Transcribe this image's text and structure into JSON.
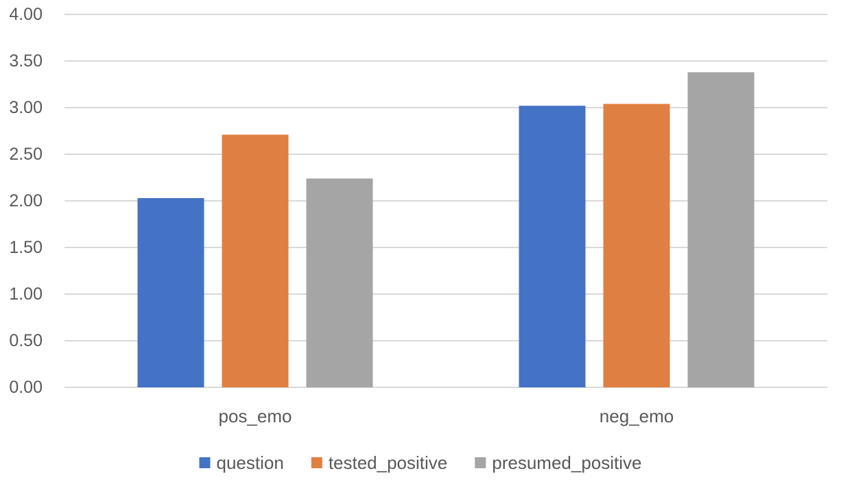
{
  "chart_data": {
    "type": "bar",
    "categories": [
      "pos_emo",
      "neg_emo"
    ],
    "series": [
      {
        "name": "question",
        "values": [
          2.03,
          3.02
        ],
        "color": "#4472c4"
      },
      {
        "name": "tested_positive",
        "values": [
          2.71,
          3.04
        ],
        "color": "#e07f42"
      },
      {
        "name": "presumed_positive",
        "values": [
          2.24,
          3.38
        ],
        "color": "#a5a5a5"
      }
    ],
    "ylim": [
      0,
      4
    ],
    "yticks": [
      "0.00",
      "0.50",
      "1.00",
      "1.50",
      "2.00",
      "2.50",
      "3.00",
      "3.50",
      "4.00"
    ],
    "grid": true,
    "legend": "bottom",
    "title": "",
    "xlabel": "",
    "ylabel": ""
  }
}
